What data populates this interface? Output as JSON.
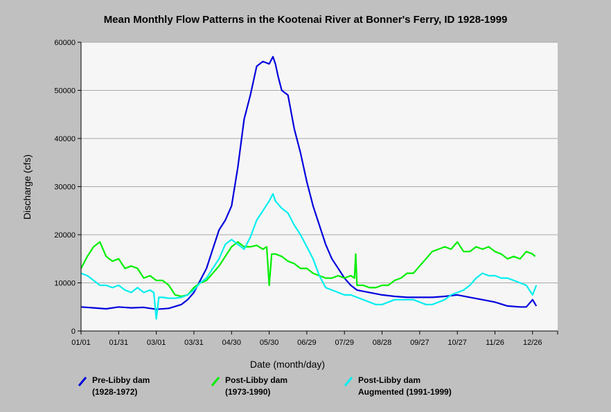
{
  "chart_data": {
    "type": "line",
    "title": "Mean Monthly Flow Patterns in the Kootenai River at Bonner's Ferry, ID 1928-1999",
    "xlabel": "Date (month/day)",
    "ylabel": "Discharge (cfs)",
    "ylim": [
      0,
      60000
    ],
    "y_ticks": [
      "0",
      "10000",
      "20000",
      "30000",
      "40000",
      "50000",
      "60000"
    ],
    "x_tick_labels": [
      "01/01",
      "01/31",
      "03/01",
      "03/31",
      "04/30",
      "05/30",
      "06/29",
      "07/29",
      "08/28",
      "09/27",
      "10/27",
      "11/26",
      "12/26"
    ],
    "x_tick_days": [
      0,
      30,
      60,
      90,
      120,
      150,
      180,
      210,
      240,
      270,
      300,
      330,
      360
    ],
    "xlim_days": [
      0,
      380
    ],
    "grid": "horizontal",
    "legend_position": "bottom",
    "colors": {
      "background": "#c0c0c0",
      "plot_background": "#f6f6f6",
      "grid": "#a8a8a8"
    },
    "series": [
      {
        "name": "Pre-Libby dam (1928-1972)",
        "legend_line1": "Pre-Libby dam",
        "legend_line2": "(1928-1972)",
        "color": "#0000dd",
        "x": [
          0,
          10,
          20,
          30,
          40,
          50,
          60,
          70,
          80,
          85,
          90,
          95,
          100,
          105,
          110,
          115,
          120,
          125,
          130,
          135,
          140,
          145,
          150,
          153,
          155,
          157,
          160,
          165,
          170,
          175,
          180,
          185,
          190,
          195,
          200,
          205,
          210,
          215,
          220,
          230,
          240,
          250,
          260,
          270,
          280,
          290,
          300,
          310,
          320,
          330,
          340,
          350,
          355,
          360,
          363
        ],
        "y": [
          5000,
          4800,
          4600,
          5000,
          4800,
          4900,
          4500,
          4700,
          5500,
          6500,
          8000,
          10500,
          13000,
          17000,
          21000,
          23000,
          26000,
          34000,
          44000,
          49000,
          55000,
          56000,
          55500,
          57000,
          55500,
          53000,
          50000,
          49000,
          42000,
          37000,
          31000,
          26000,
          22000,
          18000,
          15000,
          13000,
          11000,
          9500,
          8500,
          8000,
          7500,
          7200,
          7000,
          7000,
          7000,
          7200,
          7500,
          7000,
          6500,
          6000,
          5200,
          5000,
          5000,
          6500,
          5200
        ]
      },
      {
        "name": "Post-Libby dam (1973-1990)",
        "legend_line1": "Post-Libby dam",
        "legend_line2": "(1973-1990)",
        "color": "#00ee00",
        "x": [
          0,
          5,
          10,
          15,
          20,
          25,
          30,
          35,
          40,
          45,
          50,
          55,
          60,
          65,
          70,
          75,
          80,
          85,
          90,
          95,
          100,
          105,
          110,
          115,
          120,
          125,
          130,
          135,
          140,
          145,
          148,
          150,
          152,
          155,
          160,
          165,
          170,
          175,
          180,
          185,
          190,
          195,
          200,
          205,
          210,
          215,
          218,
          219,
          220,
          225,
          230,
          235,
          240,
          245,
          250,
          255,
          260,
          265,
          270,
          275,
          280,
          285,
          290,
          295,
          300,
          305,
          310,
          315,
          320,
          325,
          330,
          335,
          340,
          345,
          350,
          355,
          360,
          362
        ],
        "y": [
          13000,
          15500,
          17500,
          18500,
          15500,
          14500,
          15000,
          13000,
          13500,
          13000,
          11000,
          11500,
          10500,
          10500,
          9500,
          7500,
          7200,
          7500,
          9000,
          10000,
          10500,
          12000,
          13500,
          15500,
          17500,
          18500,
          17500,
          17500,
          17800,
          17000,
          17500,
          9500,
          16000,
          16000,
          15500,
          14500,
          14000,
          13000,
          13000,
          12000,
          11500,
          11000,
          11000,
          11500,
          11000,
          11500,
          11000,
          16000,
          9500,
          9500,
          9000,
          9000,
          9500,
          9500,
          10500,
          11000,
          12000,
          12000,
          13500,
          15000,
          16500,
          17000,
          17500,
          17000,
          18500,
          16500,
          16500,
          17500,
          17000,
          17500,
          16500,
          16000,
          15000,
          15500,
          15000,
          16500,
          16000,
          15500
        ]
      },
      {
        "name": "Post-Libby dam Augmented (1991-1999)",
        "legend_line1": "Post-Libby dam",
        "legend_line2": "Augmented (1991-1999)",
        "color": "#00eeee",
        "x": [
          0,
          5,
          10,
          15,
          20,
          25,
          30,
          35,
          40,
          45,
          50,
          55,
          58,
          60,
          62,
          65,
          70,
          75,
          80,
          85,
          90,
          95,
          100,
          105,
          110,
          115,
          120,
          125,
          130,
          135,
          140,
          145,
          150,
          153,
          155,
          160,
          165,
          170,
          175,
          180,
          185,
          190,
          195,
          200,
          205,
          210,
          215,
          220,
          225,
          230,
          235,
          240,
          245,
          250,
          255,
          260,
          265,
          270,
          275,
          280,
          285,
          290,
          295,
          300,
          305,
          310,
          315,
          320,
          325,
          330,
          335,
          340,
          345,
          350,
          355,
          360,
          363
        ],
        "y": [
          12000,
          11500,
          10500,
          9500,
          9500,
          9000,
          9500,
          8500,
          8000,
          9000,
          8000,
          8500,
          8000,
          2500,
          7000,
          7000,
          6800,
          6800,
          7000,
          7500,
          8500,
          10000,
          11000,
          13000,
          15000,
          18000,
          19000,
          18000,
          17000,
          19500,
          23000,
          25000,
          27000,
          28500,
          27000,
          25500,
          24500,
          22000,
          20000,
          17500,
          15000,
          11500,
          9000,
          8500,
          8000,
          7500,
          7500,
          7000,
          6500,
          6000,
          5500,
          5500,
          6000,
          6500,
          6500,
          6500,
          6500,
          6000,
          5500,
          5500,
          6000,
          6500,
          7500,
          8000,
          8500,
          9500,
          11000,
          12000,
          11500,
          11500,
          11000,
          11000,
          10500,
          10000,
          9500,
          7500,
          9500
        ]
      }
    ]
  }
}
